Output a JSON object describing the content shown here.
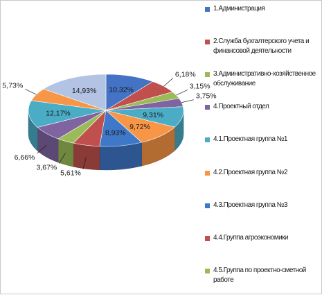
{
  "chart_data": {
    "type": "pie",
    "title": "",
    "series": [
      {
        "label": "1.Администрация",
        "value": 10.32,
        "value_label": "10,32%",
        "color": "#4472c4"
      },
      {
        "label": "2.Служба бухгалтерского учета и финансовой деятельности",
        "value": 6.18,
        "value_label": "6,18%",
        "color": "#c0504d"
      },
      {
        "label": "3.Административно-хозяйственное обслуживание",
        "value": 3.15,
        "value_label": "3,15%",
        "color": "#9bbb59"
      },
      {
        "label": "4.Проектный отдел",
        "value": 3.75,
        "value_label": "3,75%",
        "color": "#8064a2"
      },
      {
        "label": "4.1.Проектная группа №1",
        "value": 9.31,
        "value_label": "9,31%",
        "color": "#4bacc6"
      },
      {
        "label": "4.2.Проектная группа №2",
        "value": 9.72,
        "value_label": "9,72%",
        "color": "#f79646"
      },
      {
        "label": "4.3.Проектная группа №3",
        "value": 8.93,
        "value_label": "8,93%",
        "color": "#3f78c8"
      },
      {
        "label": "4.4.Группа агроэкономики",
        "value": 5.61,
        "value_label": "5,61%",
        "color": "#c0504d"
      },
      {
        "label": "4.5.Группа по проектно-сметной работе",
        "value": 3.67,
        "value_label": "3,67%",
        "color": "#9bbb59"
      },
      {
        "label": "",
        "value": 6.66,
        "value_label": "6,66%",
        "color": "#8064a2"
      },
      {
        "label": "",
        "value": 12.17,
        "value_label": "12,17%",
        "color": "#4bacc6"
      },
      {
        "label": "",
        "value": 5.73,
        "value_label": "5,73%",
        "color": "#f79646"
      },
      {
        "label": "",
        "value": 14.93,
        "value_label": "14,93%",
        "color": "#b3c3e3"
      }
    ],
    "legend_position": "right",
    "three_d": true
  }
}
